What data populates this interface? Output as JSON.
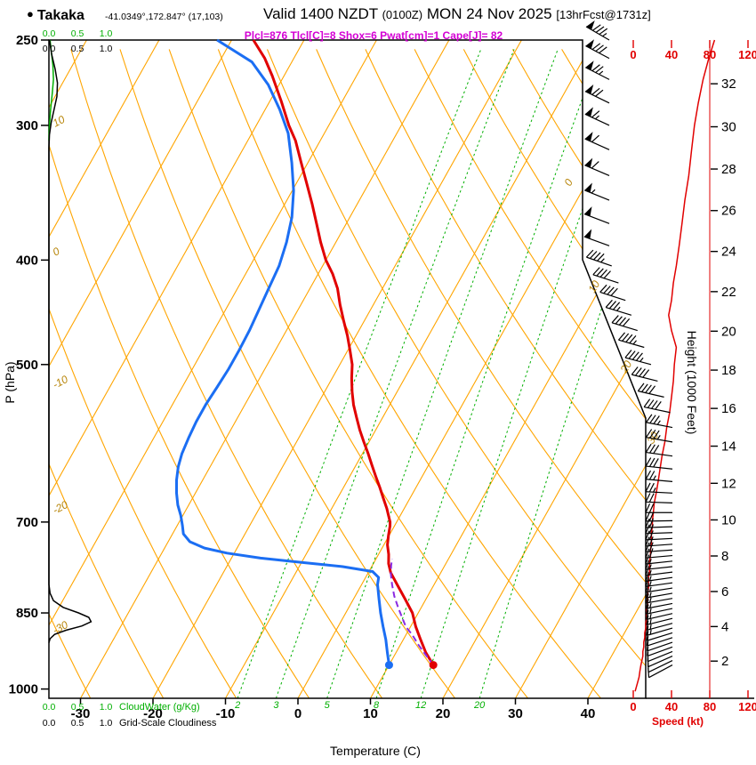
{
  "header": {
    "bullet": "●",
    "station": "Takaka",
    "coords": "-41.0349°,172.847° (17,103)",
    "valid_main": "Valid 1400 NZDT",
    "valid_zulu": "(0100Z)",
    "valid_date": "MON 24 Nov 2025",
    "valid_fcst": "[13hrFcst@1731z]",
    "indices": "Plcl=876 Tlcl[C]=8 Shox=6 Pwat[cm]=1 Cape[J]= 82"
  },
  "axis_titles": {
    "pressure": "P (hPa)",
    "temperature": "Temperature (C)",
    "height": "Height (1000 Feet)",
    "speed": "Speed (kt)",
    "cloudwater": "CloudWater (g/Kg)",
    "cloudiness": "Grid-Scale Cloudiness"
  },
  "chart_data": {
    "type": "skewt_log_p_sounding",
    "pressure_ticks": [
      250,
      300,
      400,
      500,
      700,
      850,
      1000
    ],
    "temp_ticks": [
      -30,
      -20,
      -10,
      0,
      10,
      20,
      30,
      40
    ],
    "height_ticks_kft": [
      2,
      4,
      6,
      8,
      10,
      12,
      14,
      16,
      18,
      20,
      22,
      24,
      26,
      28,
      30,
      32
    ],
    "speed_ticks_kt": [
      0,
      40,
      80,
      120
    ],
    "cloud_scale": [
      "0.0",
      "0.5",
      "1.0"
    ],
    "mixing_ratio_lines_gkg": [
      2,
      3,
      5,
      8,
      12,
      20
    ],
    "dry_adiabat_edge_labels": [
      [
        10,
        143
      ],
      [
        0,
        288
      ],
      [
        -10,
        437
      ],
      [
        -20,
        578
      ],
      [
        -30,
        713
      ]
    ],
    "isotherm_labels": [
      [
        0,
        641,
        210
      ],
      [
        10,
        668,
        330
      ],
      [
        20,
        704,
        420
      ],
      [
        30,
        734,
        500
      ]
    ],
    "temperature_profile": [
      [
        950,
        16.1
      ],
      [
        925,
        14.1
      ],
      [
        900,
        12.4
      ],
      [
        875,
        10.7
      ],
      [
        850,
        9.2
      ],
      [
        825,
        7.1
      ],
      [
        800,
        4.9
      ],
      [
        780,
        3.1
      ],
      [
        765,
        2.1
      ],
      [
        750,
        1.4
      ],
      [
        735,
        0.5
      ],
      [
        720,
        -0.1
      ],
      [
        706,
        -0.6
      ],
      [
        700,
        -0.9
      ],
      [
        692,
        -1.5
      ],
      [
        680,
        -2.4
      ],
      [
        665,
        -3.7
      ],
      [
        650,
        -5.0
      ],
      [
        635,
        -6.4
      ],
      [
        620,
        -7.8
      ],
      [
        605,
        -9.2
      ],
      [
        590,
        -10.7
      ],
      [
        575,
        -12.2
      ],
      [
        560,
        -13.6
      ],
      [
        545,
        -15.0
      ],
      [
        530,
        -16.2
      ],
      [
        515,
        -17.3
      ],
      [
        500,
        -18.3
      ],
      [
        485,
        -19.7
      ],
      [
        470,
        -21.2
      ],
      [
        455,
        -22.9
      ],
      [
        440,
        -24.6
      ],
      [
        425,
        -26.2
      ],
      [
        412,
        -28.0
      ],
      [
        400,
        -30.0
      ],
      [
        385,
        -32.1
      ],
      [
        370,
        -34.1
      ],
      [
        355,
        -36.2
      ],
      [
        340,
        -38.5
      ],
      [
        325,
        -40.9
      ],
      [
        310,
        -43.4
      ],
      [
        300,
        -45.5
      ],
      [
        285,
        -48.4
      ],
      [
        270,
        -51.6
      ],
      [
        260,
        -54.0
      ],
      [
        250,
        -57.0
      ]
    ],
    "dewpoint_profile": [
      [
        950,
        10.0
      ],
      [
        925,
        8.8
      ],
      [
        900,
        7.6
      ],
      [
        875,
        6.2
      ],
      [
        850,
        4.8
      ],
      [
        825,
        3.5
      ],
      [
        800,
        2.2
      ],
      [
        788,
        1.8
      ],
      [
        778,
        0.5
      ],
      [
        770,
        -4.0
      ],
      [
        763,
        -10.0
      ],
      [
        756,
        -16.0
      ],
      [
        748,
        -21.0
      ],
      [
        740,
        -24.5
      ],
      [
        730,
        -27.0
      ],
      [
        718,
        -28.5
      ],
      [
        705,
        -29.3
      ],
      [
        690,
        -30.3
      ],
      [
        675,
        -31.5
      ],
      [
        658,
        -32.6
      ],
      [
        640,
        -33.6
      ],
      [
        622,
        -34.4
      ],
      [
        605,
        -34.9
      ],
      [
        585,
        -35.2
      ],
      [
        565,
        -35.4
      ],
      [
        545,
        -35.4
      ],
      [
        525,
        -35.2
      ],
      [
        505,
        -35.0
      ],
      [
        485,
        -35.0
      ],
      [
        465,
        -35.1
      ],
      [
        445,
        -35.4
      ],
      [
        425,
        -35.7
      ],
      [
        405,
        -36.0
      ],
      [
        385,
        -36.8
      ],
      [
        365,
        -38.0
      ],
      [
        345,
        -39.8
      ],
      [
        325,
        -42.2
      ],
      [
        305,
        -45.0
      ],
      [
        290,
        -48.0
      ],
      [
        275,
        -51.5
      ],
      [
        262,
        -55.5
      ],
      [
        250,
        -62.0
      ]
    ],
    "parcel_profile": [
      [
        950,
        16.1
      ],
      [
        930,
        14.3
      ],
      [
        910,
        12.5
      ],
      [
        890,
        10.8
      ],
      [
        876,
        9.4
      ],
      [
        858,
        8.1
      ],
      [
        840,
        6.8
      ],
      [
        820,
        5.4
      ],
      [
        800,
        4.2
      ],
      [
        782,
        3.2
      ],
      [
        768,
        2.6
      ],
      [
        757,
        2.2
      ]
    ],
    "surface_temp_point": [
      950,
      16.1
    ],
    "surface_dewpoint_point": [
      950,
      10.0
    ],
    "cloudiness_profile": [
      [
        250,
        0.01
      ],
      [
        258,
        0.05
      ],
      [
        266,
        0.11
      ],
      [
        274,
        0.15
      ],
      [
        282,
        0.14
      ],
      [
        290,
        0.09
      ],
      [
        298,
        0.04
      ],
      [
        306,
        0.01
      ],
      [
        315,
        0
      ],
      [
        800,
        0
      ],
      [
        815,
        0.02
      ],
      [
        828,
        0.08
      ],
      [
        840,
        0.25
      ],
      [
        850,
        0.52
      ],
      [
        858,
        0.7
      ],
      [
        866,
        0.74
      ],
      [
        874,
        0.58
      ],
      [
        882,
        0.3
      ],
      [
        890,
        0.1
      ],
      [
        898,
        0.02
      ],
      [
        906,
        0
      ]
    ],
    "cloudwater_profile": [
      [
        250,
        0.02
      ],
      [
        256,
        0.04
      ],
      [
        264,
        0.07
      ],
      [
        272,
        0.08
      ],
      [
        280,
        0.06
      ],
      [
        290,
        0.03
      ],
      [
        300,
        0.01
      ],
      [
        310,
        0
      ]
    ],
    "wind_profile": [
      [
        950,
        242,
        8
      ],
      [
        941,
        244,
        9
      ],
      [
        932,
        246,
        10
      ],
      [
        923,
        248,
        10
      ],
      [
        914,
        250,
        11
      ],
      [
        905,
        251,
        11
      ],
      [
        896,
        252,
        12
      ],
      [
        887,
        253,
        12
      ],
      [
        878,
        254,
        13
      ],
      [
        869,
        255,
        13
      ],
      [
        860,
        256,
        14
      ],
      [
        851,
        257,
        14
      ],
      [
        842,
        258,
        14
      ],
      [
        833,
        259,
        15
      ],
      [
        824,
        260,
        15
      ],
      [
        815,
        260,
        15
      ],
      [
        806,
        261,
        16
      ],
      [
        797,
        262,
        16
      ],
      [
        788,
        262,
        16
      ],
      [
        779,
        263,
        17
      ],
      [
        770,
        264,
        17
      ],
      [
        761,
        264,
        17
      ],
      [
        752,
        265,
        18
      ],
      [
        743,
        266,
        18
      ],
      [
        734,
        266,
        19
      ],
      [
        725,
        267,
        19
      ],
      [
        716,
        268,
        19
      ],
      [
        707,
        268,
        20
      ],
      [
        698,
        269,
        20
      ],
      [
        686,
        270,
        21
      ],
      [
        672,
        272,
        22
      ],
      [
        658,
        273,
        24
      ],
      [
        642,
        275,
        26
      ],
      [
        625,
        276,
        28
      ],
      [
        608,
        278,
        30
      ],
      [
        590,
        280,
        33
      ],
      [
        572,
        281,
        35
      ],
      [
        554,
        282,
        38
      ],
      [
        536,
        283,
        40
      ],
      [
        518,
        284,
        42
      ],
      [
        500,
        285,
        43
      ],
      [
        482,
        286,
        45
      ],
      [
        465,
        287,
        40
      ],
      [
        450,
        287,
        37
      ],
      [
        436,
        288,
        40
      ],
      [
        420,
        288,
        42
      ],
      [
        405,
        289,
        45
      ],
      [
        388,
        290,
        48
      ],
      [
        370,
        291,
        51
      ],
      [
        352,
        292,
        54
      ],
      [
        334,
        293,
        58
      ],
      [
        316,
        294,
        61
      ],
      [
        300,
        295,
        64
      ],
      [
        286,
        296,
        68
      ],
      [
        272,
        297,
        73
      ],
      [
        260,
        298,
        79
      ],
      [
        250,
        300,
        85
      ]
    ],
    "speed_curve_prefix": [
      [
        1005,
        2
      ],
      [
        990,
        4
      ],
      [
        975,
        6
      ],
      [
        962,
        7
      ]
    ],
    "colors": {
      "grid_orange": "#FFA500",
      "mixing_green": "#00AF00",
      "temp_red": "#E10000",
      "dew_blue": "#1B6EF3",
      "parcel_purple": "#8A2BE2",
      "olive_label": "#B8860B",
      "speed_red": "#E10000",
      "magenta": "#D400D4",
      "black": "#000000"
    }
  }
}
